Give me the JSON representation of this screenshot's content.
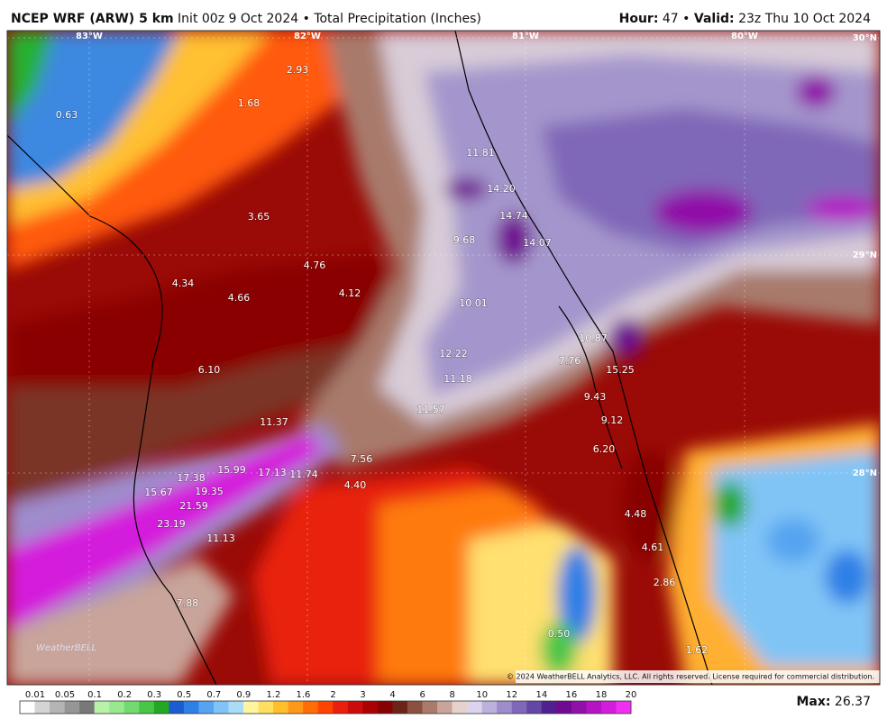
{
  "header": {
    "model": "NCEP WRF (ARW) 5 km",
    "init": "Init 00z 9 Oct 2024",
    "separator": "•",
    "product": "Total Precipitation (Inches)",
    "hour_label": "Hour:",
    "hour": "47",
    "valid_label": "Valid:",
    "valid": "23z Thu 10 Oct 2024"
  },
  "map": {
    "longitudes": [
      "83°W",
      "82°W",
      "81°W",
      "80°W"
    ],
    "latitudes": [
      "30°N",
      "29°N",
      "28°N"
    ],
    "point_values": [
      "2.93",
      "1.68",
      "0.63",
      "11.81",
      "14.20",
      "14.74",
      "3.65",
      "9.68",
      "14.07",
      "4.76",
      "4.34",
      "4.66",
      "4.12",
      "10.01",
      "10.87",
      "12.22",
      "7.76",
      "15.25",
      "6.10",
      "11.18",
      "9.43",
      "11.57",
      "9.12",
      "11.37",
      "6.20",
      "7.56",
      "17.38",
      "15.99",
      "17.13",
      "11.74",
      "4.40",
      "15.67",
      "19.35",
      "21.59",
      "4.48",
      "23.19",
      "11.13",
      "4.61",
      "2.86",
      "7.88",
      "0.50",
      "1.62"
    ],
    "logo": "WeatherBELL",
    "copyright": "© 2024 WeatherBELL Analytics, LLC. All rights reserved. License required for commercial distribution."
  },
  "colorbar": {
    "labels": [
      "0.01",
      "0.05",
      "0.1",
      "0.2",
      "0.3",
      "0.5",
      "0.7",
      "0.9",
      "1.2",
      "1.6",
      "2",
      "3",
      "4",
      "6",
      "8",
      "10",
      "12",
      "14",
      "16",
      "18",
      "20"
    ],
    "colors": [
      "#ffffff",
      "#d4d4d4",
      "#b4b4b4",
      "#969696",
      "#787878",
      "#b8f2a8",
      "#98e890",
      "#72da6e",
      "#48c648",
      "#22a822",
      "#1b5cd0",
      "#2e80e6",
      "#56a4f0",
      "#80c4f6",
      "#aadcf8",
      "#fff4a0",
      "#ffde60",
      "#ffbe2c",
      "#ff9818",
      "#ff6e06",
      "#ff4400",
      "#e8200c",
      "#cc0c0c",
      "#aa0202",
      "#880000",
      "#6c2418",
      "#8c5040",
      "#aa7a6c",
      "#c8a49a",
      "#e6d2cc",
      "#dcd4ec",
      "#bcb0dc",
      "#9e8ccc",
      "#8068b8",
      "#6446a4",
      "#50208e",
      "#700a90",
      "#9010a8",
      "#b414c4",
      "#d41cdc",
      "#f030f0"
    ]
  },
  "max": {
    "label": "Max:",
    "value": "26.37"
  }
}
